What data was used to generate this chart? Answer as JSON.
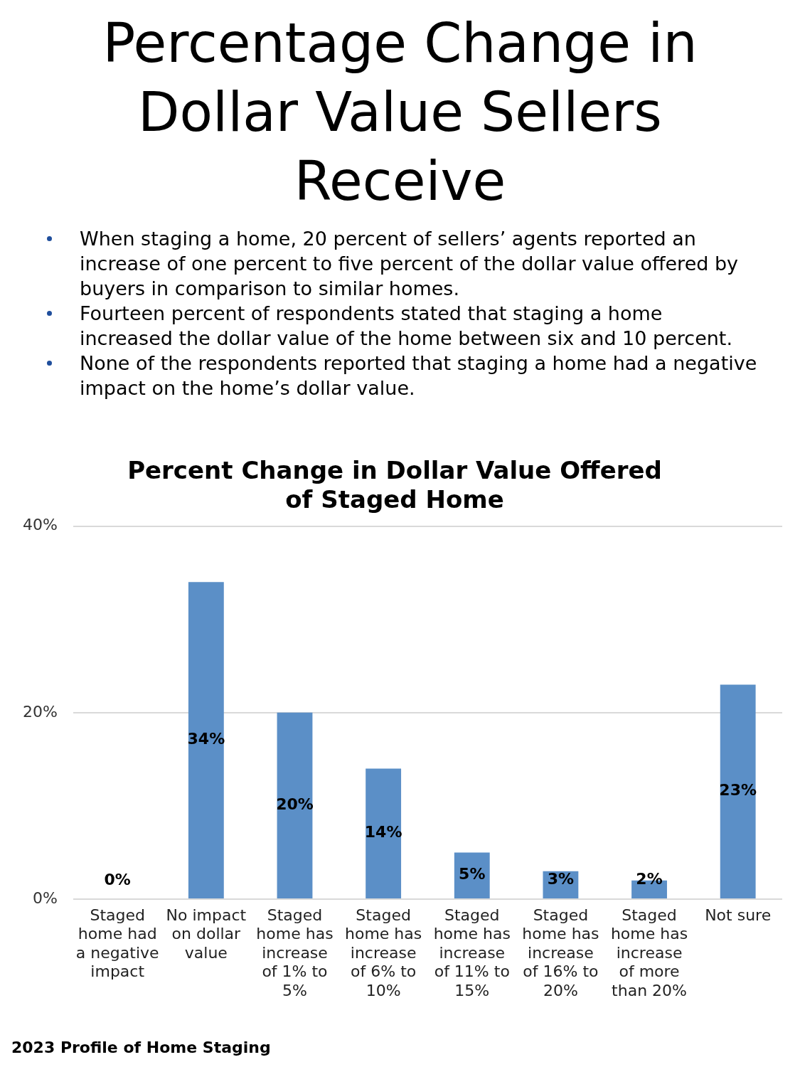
{
  "chart_data": {
    "type": "bar",
    "title": "Percentage Change in Dollar Value Sellers Receive",
    "subtitle": "Percent Change in Dollar Value Offered of Staged Home",
    "annotations": [
      "When staging a home, 20 percent of sellers’ agents reported an increase of one percent to five percent of the dollar value offered by buyers in comparison to similar homes.",
      "Fourteen percent of respondents stated that staging a home increased the dollar value of the home between six and 10 percent.",
      "None of the respondents reported that staging a home had a negative impact on the home’s dollar value.",
      "2023 Profile of Home Staging"
    ],
    "categories": [
      "Staged home had a negative impact",
      "No impact on dollar value",
      "Staged home has increase of 1% to 5%",
      "Staged home has increase of 6% to 10%",
      "Staged home has increase of 11% to 15%",
      "Staged home has increase of 16% to 20%",
      "Staged home has increase of more than 20%",
      "Not sure"
    ],
    "values": [
      0,
      34,
      20,
      14,
      5,
      3,
      2,
      23
    ],
    "color": "#5b8fc7",
    "value_labels": [
      "0%",
      "34%",
      "20%",
      "14%",
      "5%",
      "3%",
      "2%",
      "23%"
    ],
    "ylim": [
      0,
      40
    ],
    "yticks": [
      {
        "value": 0,
        "label": "0%"
      },
      {
        "value": 20,
        "label": "20%"
      },
      {
        "value": 40,
        "label": "40%"
      }
    ],
    "grid": "y",
    "legend": false
  }
}
